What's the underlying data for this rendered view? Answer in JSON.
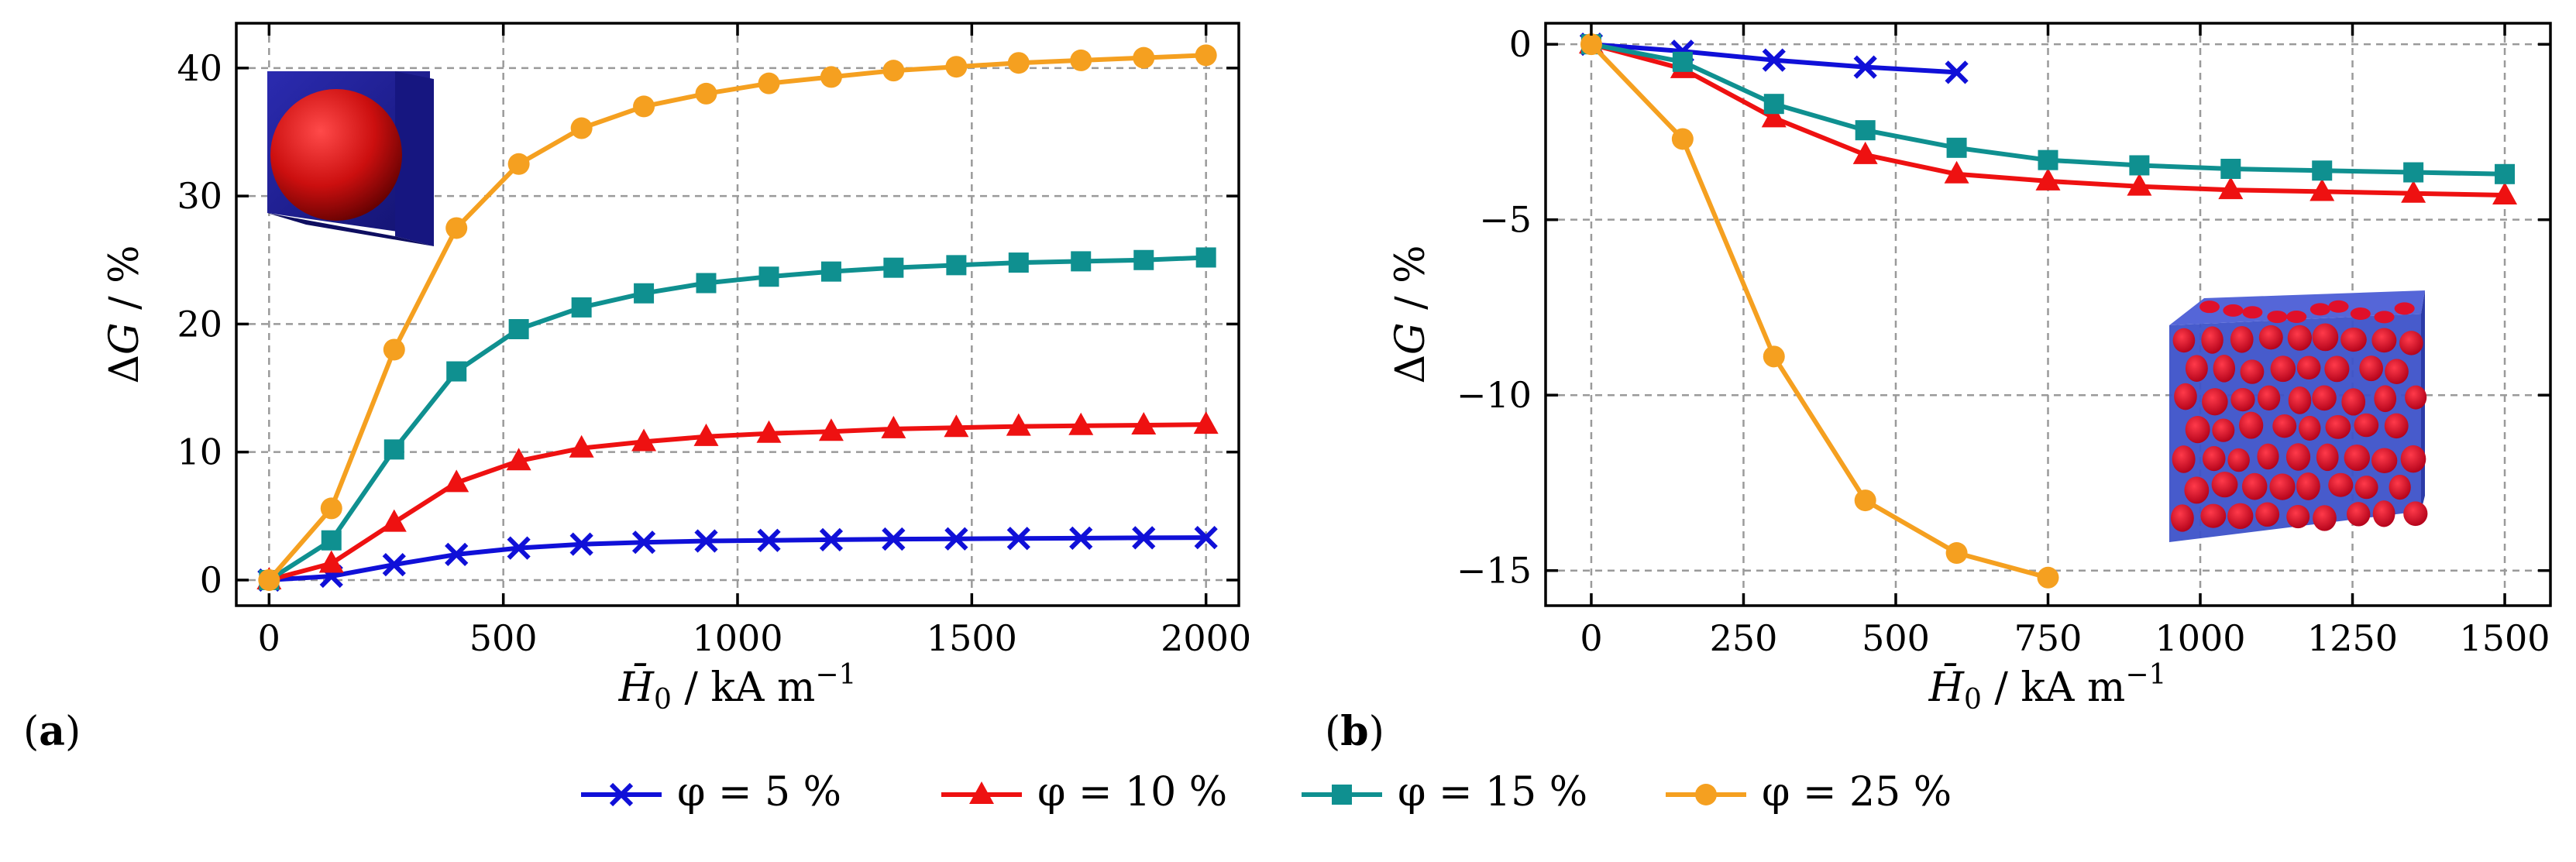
{
  "chart_data": [
    {
      "type": "line",
      "panel_label": "(a)",
      "panel_letter": "a",
      "xlabel": "H̄0 / kA m−1",
      "ylabel": "ΔG / %",
      "xlim": [
        -70,
        2070
      ],
      "ylim": [
        -2,
        43.5
      ],
      "xticks": [
        0,
        500,
        1000,
        1500,
        2000
      ],
      "yticks": [
        0,
        10,
        20,
        30,
        40
      ],
      "inset": "single sphere in cube",
      "series": [
        {
          "name": "φ = 5 %",
          "color": "#1010d8",
          "marker": "x",
          "x": [
            0,
            133,
            267,
            400,
            533,
            667,
            800,
            933,
            1067,
            1200,
            1333,
            1467,
            1600,
            1733,
            1867,
            2000
          ],
          "y": [
            0,
            0.3,
            1.2,
            2.0,
            2.5,
            2.8,
            2.95,
            3.05,
            3.1,
            3.15,
            3.2,
            3.22,
            3.25,
            3.27,
            3.3,
            3.32
          ]
        },
        {
          "name": "φ = 10 %",
          "color": "#ee1111",
          "marker": "triangle",
          "x": [
            0,
            133,
            267,
            400,
            533,
            667,
            800,
            933,
            1067,
            1200,
            1333,
            1467,
            1600,
            1733,
            1867,
            2000
          ],
          "y": [
            0,
            1.3,
            4.5,
            7.6,
            9.3,
            10.3,
            10.8,
            11.2,
            11.45,
            11.6,
            11.8,
            11.9,
            12.0,
            12.05,
            12.1,
            12.15
          ]
        },
        {
          "name": "φ = 15 %",
          "color": "#0f9090",
          "marker": "square",
          "x": [
            0,
            133,
            267,
            400,
            533,
            667,
            800,
            933,
            1067,
            1200,
            1333,
            1467,
            1600,
            1733,
            1867,
            2000
          ],
          "y": [
            0,
            3.1,
            10.2,
            16.3,
            19.6,
            21.3,
            22.4,
            23.2,
            23.7,
            24.1,
            24.4,
            24.6,
            24.8,
            24.9,
            25.0,
            25.2
          ]
        },
        {
          "name": "φ = 25 %",
          "color": "#f5a020",
          "marker": "circle",
          "x": [
            0,
            133,
            267,
            400,
            533,
            667,
            800,
            933,
            1067,
            1200,
            1333,
            1467,
            1600,
            1733,
            1867,
            2000
          ],
          "y": [
            0,
            5.6,
            18.0,
            27.5,
            32.5,
            35.3,
            37.0,
            38.0,
            38.8,
            39.3,
            39.8,
            40.1,
            40.4,
            40.6,
            40.8,
            41.0
          ]
        }
      ]
    },
    {
      "type": "line",
      "panel_label": "(b)",
      "panel_letter": "b",
      "xlabel": "H̄0 / kA m−1",
      "ylabel": "ΔG / %",
      "xlim": [
        -75,
        1575
      ],
      "ylim": [
        -16.0,
        0.6
      ],
      "xticks": [
        0,
        250,
        500,
        750,
        1000,
        1250,
        1500
      ],
      "yticks": [
        0,
        -5,
        -10,
        -15
      ],
      "ytick_labels": [
        "0",
        "−5",
        "−10",
        "−15"
      ],
      "inset": "cube with many red spheres",
      "series": [
        {
          "name": "φ = 5 %",
          "color": "#1010d8",
          "marker": "x",
          "x": [
            0,
            150,
            300,
            450,
            600
          ],
          "y": [
            0,
            -0.2,
            -0.45,
            -0.65,
            -0.8
          ]
        },
        {
          "name": "φ = 10 %",
          "color": "#ee1111",
          "marker": "triangle",
          "x": [
            0,
            150,
            300,
            450,
            600,
            750,
            900,
            1050,
            1200,
            1350,
            1500
          ],
          "y": [
            0,
            -0.7,
            -2.1,
            -3.15,
            -3.7,
            -3.9,
            -4.05,
            -4.15,
            -4.2,
            -4.25,
            -4.3
          ]
        },
        {
          "name": "φ = 15 %",
          "color": "#0f9090",
          "marker": "square",
          "x": [
            0,
            150,
            300,
            450,
            600,
            750,
            900,
            1050,
            1200,
            1350,
            1500
          ],
          "y": [
            0,
            -0.5,
            -1.7,
            -2.45,
            -2.95,
            -3.3,
            -3.45,
            -3.55,
            -3.6,
            -3.65,
            -3.7
          ]
        },
        {
          "name": "φ = 25 %",
          "color": "#f5a020",
          "marker": "circle",
          "x": [
            0,
            150,
            300,
            450,
            600,
            750
          ],
          "y": [
            0,
            -2.7,
            -8.9,
            -13.0,
            -14.5,
            -15.2
          ]
        }
      ]
    }
  ],
  "legend": [
    {
      "label": "φ = 5 %",
      "color": "#1010d8",
      "marker": "x"
    },
    {
      "label": "φ = 10 %",
      "color": "#ee1111",
      "marker": "triangle"
    },
    {
      "label": "φ = 15 %",
      "color": "#0f9090",
      "marker": "square"
    },
    {
      "label": "φ = 25 %",
      "color": "#f5a020",
      "marker": "circle"
    }
  ]
}
